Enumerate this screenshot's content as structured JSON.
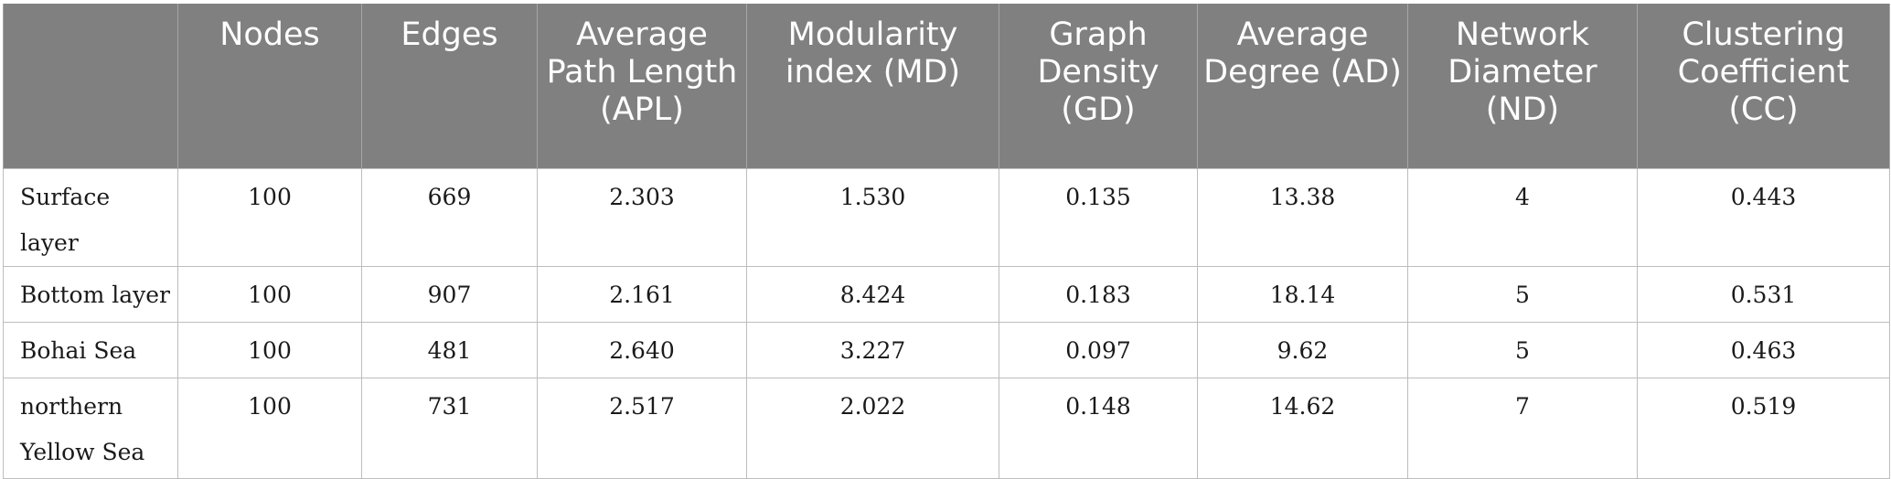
{
  "table": {
    "headers": [
      "",
      "Nodes",
      "Edges",
      "Average Path Length (APL)",
      "Modularity index (MD)",
      "Graph Density (GD)",
      "Average Degree (AD)",
      "Network Diameter (ND)",
      "Clustering Coefficient (CC)"
    ],
    "rows": [
      {
        "label": "Surface layer",
        "values": [
          "100",
          "669",
          "2.303",
          "1.530",
          "0.135",
          "13.38",
          "4",
          "0.443"
        ]
      },
      {
        "label": "Bottom layer",
        "values": [
          "100",
          "907",
          "2.161",
          "8.424",
          "0.183",
          "18.14",
          "5",
          "0.531"
        ]
      },
      {
        "label": "Bohai Sea",
        "values": [
          "100",
          "481",
          "2.640",
          "3.227",
          "0.097",
          "9.62",
          "5",
          "0.463"
        ]
      },
      {
        "label": "northern Yellow Sea",
        "values": [
          "100",
          "731",
          "2.517",
          "2.022",
          "0.148",
          "14.62",
          "7",
          "0.519"
        ]
      }
    ]
  }
}
